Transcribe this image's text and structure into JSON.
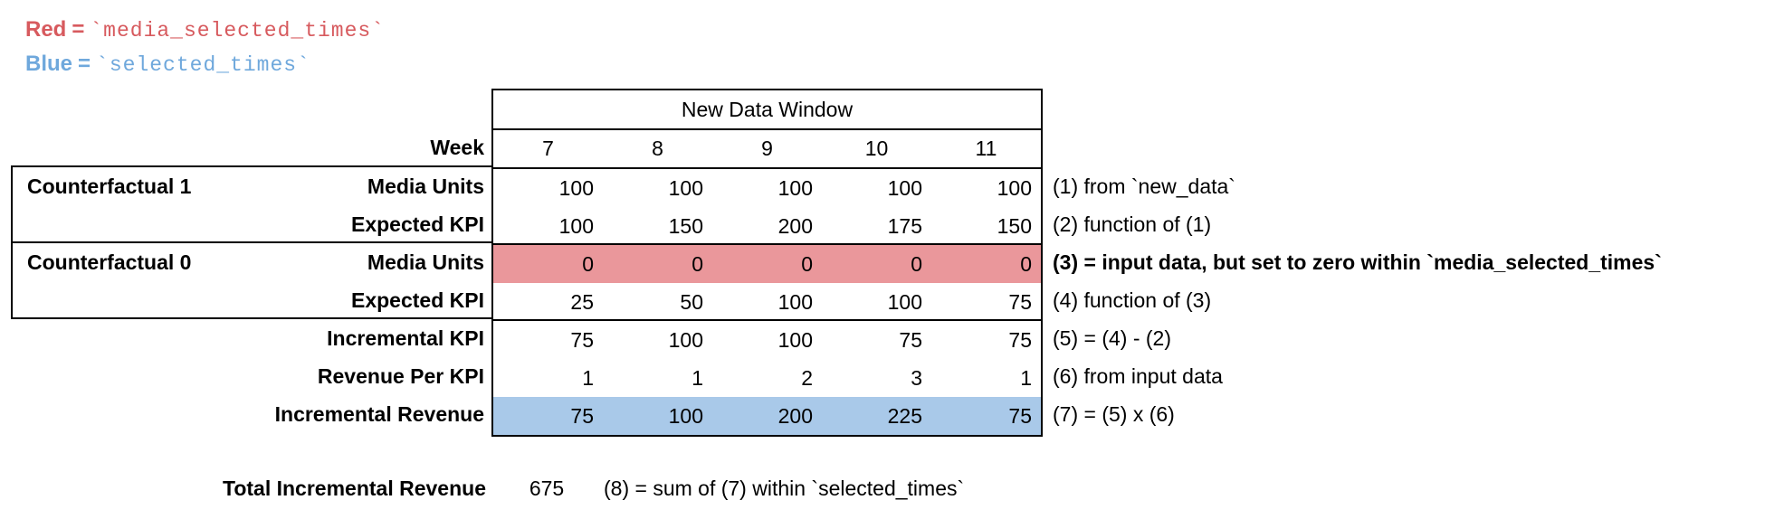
{
  "colors": {
    "red_text": "#D75A5E",
    "blue_text": "#6FA8DC",
    "red_fill": "#EA979B",
    "blue_fill": "#A9C9E9",
    "border": "#000000"
  },
  "legend": {
    "red_word": "Red",
    "blue_word": "Blue",
    "equals": "=",
    "red_code": "`media_selected_times`",
    "blue_code": "`selected_times`"
  },
  "table": {
    "header": "New Data Window",
    "week_label": "Week",
    "weeks": [
      "7",
      "8",
      "9",
      "10",
      "11"
    ],
    "rows": [
      {
        "group": "Counterfactual 1",
        "label": "Media Units",
        "values": [
          "100",
          "100",
          "100",
          "100",
          "100"
        ],
        "fill": "none",
        "note": "(1) from `new_data`",
        "note_bold": false
      },
      {
        "group": "",
        "label": "Expected KPI",
        "values": [
          "100",
          "150",
          "200",
          "175",
          "150"
        ],
        "fill": "none",
        "note": "(2) function of (1)",
        "note_bold": false
      },
      {
        "group": "Counterfactual 0",
        "label": "Media Units",
        "values": [
          "0",
          "0",
          "0",
          "0",
          "0"
        ],
        "fill": "red",
        "note": "(3) = input data, but set to zero within `media_selected_times`",
        "note_bold": true
      },
      {
        "group": "",
        "label": "Expected KPI",
        "values": [
          "25",
          "50",
          "100",
          "100",
          "75"
        ],
        "fill": "none",
        "note": "(4) function of (3)",
        "note_bold": false
      },
      {
        "group": "",
        "label": "Incremental KPI",
        "values": [
          "75",
          "100",
          "100",
          "75",
          "75"
        ],
        "fill": "none",
        "note": "(5) = (4) - (2)",
        "note_bold": false
      },
      {
        "group": "",
        "label": "Revenue Per KPI",
        "values": [
          "1",
          "1",
          "2",
          "3",
          "1"
        ],
        "fill": "none",
        "note": "(6) from input data",
        "note_bold": false
      },
      {
        "group": "",
        "label": "Incremental Revenue",
        "values": [
          "75",
          "100",
          "200",
          "225",
          "75"
        ],
        "fill": "blue",
        "note": "(7) = (5) x (6)",
        "note_bold": false
      }
    ]
  },
  "total": {
    "label": "Total Incremental Revenue",
    "value": "675",
    "note": "(8) = sum of (7) within `selected_times`"
  }
}
